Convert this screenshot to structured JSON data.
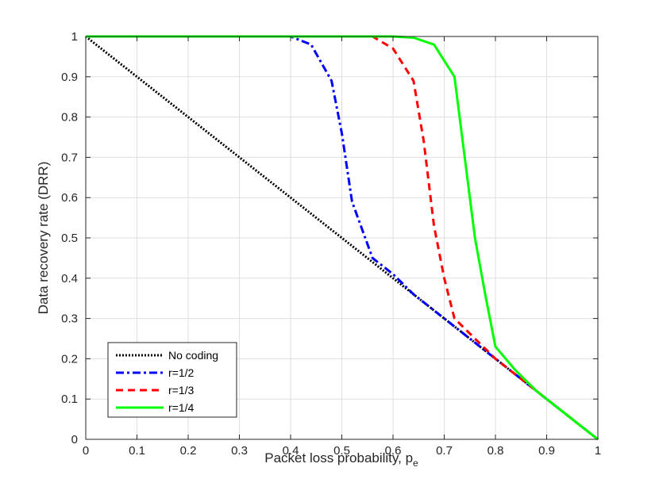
{
  "chart_data": {
    "type": "line",
    "xlabel": "Packet loss probability, p",
    "xlabel_subscript": "e",
    "ylabel": "Data recovery rate (DRR)",
    "xlim": [
      0,
      1
    ],
    "ylim": [
      0,
      1
    ],
    "xticks": [
      "0",
      "0.1",
      "0.2",
      "0.3",
      "0.4",
      "0.5",
      "0.6",
      "0.7",
      "0.8",
      "0.9",
      "1"
    ],
    "yticks": [
      "0",
      "0.1",
      "0.2",
      "0.3",
      "0.4",
      "0.5",
      "0.6",
      "0.7",
      "0.8",
      "0.9",
      "1"
    ],
    "grid": true,
    "legend_position": "bottom-left",
    "series": [
      {
        "name": "No coding",
        "color": "#000000",
        "style": "dotted",
        "x": [
          0,
          1
        ],
        "y": [
          1,
          0
        ]
      },
      {
        "name": "r=1/2",
        "color": "#0000ff",
        "style": "dashdot",
        "x": [
          0,
          0.4,
          0.44,
          0.48,
          0.5,
          0.52,
          0.56,
          0.6,
          0.64,
          0.68,
          0.72,
          0.76,
          0.8,
          0.84,
          0.88,
          0.92,
          0.96,
          1
        ],
        "y": [
          1,
          1,
          0.98,
          0.89,
          0.76,
          0.59,
          0.45,
          0.41,
          0.36,
          0.32,
          0.28,
          0.24,
          0.2,
          0.16,
          0.12,
          0.08,
          0.04,
          0
        ]
      },
      {
        "name": "r=1/3",
        "color": "#ff0000",
        "style": "dashed",
        "x": [
          0,
          0.56,
          0.6,
          0.64,
          0.66,
          0.68,
          0.7,
          0.72,
          0.76,
          0.8,
          0.84,
          0.88,
          0.92,
          0.96,
          1
        ],
        "y": [
          1,
          1,
          0.97,
          0.89,
          0.74,
          0.53,
          0.4,
          0.3,
          0.25,
          0.2,
          0.16,
          0.12,
          0.08,
          0.04,
          0
        ]
      },
      {
        "name": "r=1/4",
        "color": "#00ff00",
        "style": "solid",
        "x": [
          0,
          0.6,
          0.64,
          0.68,
          0.72,
          0.74,
          0.76,
          0.78,
          0.8,
          0.84,
          0.88,
          0.92,
          0.96,
          1
        ],
        "y": [
          1,
          1,
          0.997,
          0.98,
          0.9,
          0.7,
          0.5,
          0.36,
          0.23,
          0.17,
          0.12,
          0.08,
          0.04,
          0
        ]
      }
    ]
  }
}
